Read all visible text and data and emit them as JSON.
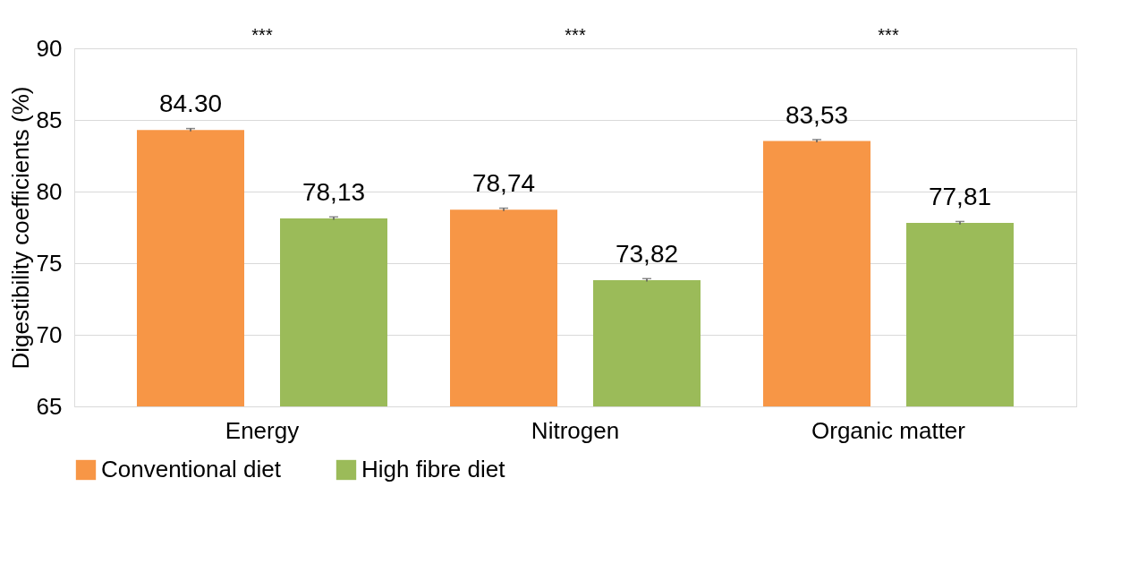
{
  "chart_data": {
    "type": "bar",
    "ylabel": "Digestibility coefficients (%)",
    "categories": [
      "Energy",
      "Nitrogen",
      "Organic matter"
    ],
    "series": [
      {
        "name": "Conventional diet",
        "color": "#f79646",
        "values": [
          84.3,
          78.74,
          83.53
        ],
        "errors": [
          0.1,
          0.1,
          0.1
        ],
        "value_labels": [
          "84.30",
          "78,74",
          "83,53"
        ]
      },
      {
        "name": "High fibre diet",
        "color": "#9bbb59",
        "values": [
          78.13,
          73.82,
          77.81
        ],
        "errors": [
          0.1,
          0.1,
          0.1
        ],
        "value_labels": [
          "78,13",
          "73,82",
          "77,81"
        ]
      }
    ],
    "ylim": [
      65,
      90
    ],
    "yticks": [
      65,
      70,
      75,
      80,
      85,
      90
    ],
    "grid": "y",
    "legend": "bottom",
    "annotations": [
      "***",
      "***",
      "***"
    ]
  }
}
